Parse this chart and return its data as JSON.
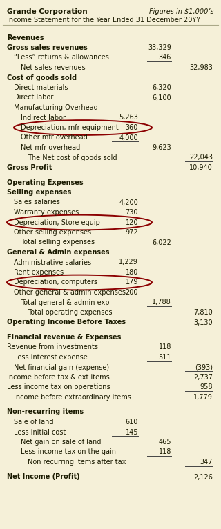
{
  "bg_color": "#f5f0d8",
  "header_line1": "Grande Corporation",
  "header_line1_italic": "Figures in $1,000’s",
  "header_line2": "Income Statement for the Year Ended 31 December 20YY",
  "rows": [
    {
      "text": "Revenues",
      "indent": 0,
      "col2": "",
      "col3": "",
      "col4": "",
      "bold": true,
      "ul2": false,
      "ul3": false,
      "ul4": false,
      "circle": false,
      "gap": true
    },
    {
      "text": "Gross sales revenues",
      "indent": 0,
      "col2": "",
      "col3": "33,329",
      "col4": "",
      "bold": true,
      "ul2": false,
      "ul3": false,
      "ul4": false,
      "circle": false,
      "gap": false
    },
    {
      "text": "“Less” returns & allowances",
      "indent": 1,
      "col2": "",
      "col3": "346",
      "col4": "",
      "bold": false,
      "ul2": false,
      "ul3": true,
      "ul4": false,
      "circle": false,
      "gap": false
    },
    {
      "text": "Net sales revenues",
      "indent": 2,
      "col2": "",
      "col3": "",
      "col4": "32,983",
      "bold": false,
      "ul2": false,
      "ul3": false,
      "ul4": false,
      "circle": false,
      "gap": false
    },
    {
      "text": "Cost of goods sold",
      "indent": 0,
      "col2": "",
      "col3": "",
      "col4": "",
      "bold": true,
      "ul2": false,
      "ul3": false,
      "ul4": false,
      "circle": false,
      "gap": false
    },
    {
      "text": "Direct materials",
      "indent": 1,
      "col2": "",
      "col3": "6,320",
      "col4": "",
      "bold": false,
      "ul2": false,
      "ul3": false,
      "ul4": false,
      "circle": false,
      "gap": false
    },
    {
      "text": "Direct labor",
      "indent": 1,
      "col2": "",
      "col3": "6,100",
      "col4": "",
      "bold": false,
      "ul2": false,
      "ul3": false,
      "ul4": false,
      "circle": false,
      "gap": false
    },
    {
      "text": "Manufacturing Overhead",
      "indent": 1,
      "col2": "",
      "col3": "",
      "col4": "",
      "bold": false,
      "ul2": false,
      "ul3": false,
      "ul4": false,
      "circle": false,
      "gap": false
    },
    {
      "text": "Indirect labor",
      "indent": 2,
      "col2": "5,263",
      "col3": "",
      "col4": "",
      "bold": false,
      "ul2": false,
      "ul3": false,
      "ul4": false,
      "circle": false,
      "gap": false
    },
    {
      "text": "Depreciation, mfr equipment",
      "indent": 2,
      "col2": "360",
      "col3": "",
      "col4": "",
      "bold": false,
      "ul2": false,
      "ul3": false,
      "ul4": false,
      "circle": true,
      "gap": false
    },
    {
      "text": "Other mfr overhead",
      "indent": 2,
      "col2": "4,000",
      "col3": "",
      "col4": "",
      "bold": false,
      "ul2": true,
      "ul3": false,
      "ul4": false,
      "circle": false,
      "gap": false
    },
    {
      "text": "Net mfr overhead",
      "indent": 2,
      "col2": "",
      "col3": "9,623",
      "col4": "",
      "bold": false,
      "ul2": false,
      "ul3": false,
      "ul4": false,
      "circle": false,
      "gap": false
    },
    {
      "text": "The Net cost of goods sold",
      "indent": 3,
      "col2": "",
      "col3": "",
      "col4": "22,043",
      "bold": false,
      "ul2": false,
      "ul3": false,
      "ul4": true,
      "circle": false,
      "gap": false
    },
    {
      "text": "Gross Profit",
      "indent": 0,
      "col2": "",
      "col3": "",
      "col4": "10,940",
      "bold": true,
      "ul2": false,
      "ul3": false,
      "ul4": false,
      "circle": false,
      "gap": false
    },
    {
      "text": "Operating Expenses",
      "indent": 0,
      "col2": "",
      "col3": "",
      "col4": "",
      "bold": true,
      "ul2": false,
      "ul3": false,
      "ul4": false,
      "circle": false,
      "gap": true
    },
    {
      "text": "Selling expenses",
      "indent": 0,
      "col2": "",
      "col3": "",
      "col4": "",
      "bold": true,
      "ul2": false,
      "ul3": false,
      "ul4": false,
      "circle": false,
      "gap": false
    },
    {
      "text": "Sales salaries",
      "indent": 1,
      "col2": "4,200",
      "col3": "",
      "col4": "",
      "bold": false,
      "ul2": false,
      "ul3": false,
      "ul4": false,
      "circle": false,
      "gap": false
    },
    {
      "text": "Warranty expenses",
      "indent": 1,
      "col2": "730",
      "col3": "",
      "col4": "",
      "bold": false,
      "ul2": false,
      "ul3": false,
      "ul4": false,
      "circle": false,
      "gap": false
    },
    {
      "text": "Depreciation, Store equip",
      "indent": 1,
      "col2": "120",
      "col3": "",
      "col4": "",
      "bold": false,
      "ul2": false,
      "ul3": false,
      "ul4": false,
      "circle": true,
      "gap": false
    },
    {
      "text": "Other selling expenses",
      "indent": 1,
      "col2": "972",
      "col3": "",
      "col4": "",
      "bold": false,
      "ul2": true,
      "ul3": false,
      "ul4": false,
      "circle": false,
      "gap": false
    },
    {
      "text": "Total selling expenses",
      "indent": 2,
      "col2": "",
      "col3": "6,022",
      "col4": "",
      "bold": false,
      "ul2": false,
      "ul3": false,
      "ul4": false,
      "circle": false,
      "gap": false
    },
    {
      "text": "General & Admin expenses",
      "indent": 0,
      "col2": "",
      "col3": "",
      "col4": "",
      "bold": true,
      "ul2": false,
      "ul3": false,
      "ul4": false,
      "circle": false,
      "gap": false
    },
    {
      "text": "Administrative salaries",
      "indent": 1,
      "col2": "1,229",
      "col3": "",
      "col4": "",
      "bold": false,
      "ul2": false,
      "ul3": false,
      "ul4": false,
      "circle": false,
      "gap": false
    },
    {
      "text": "Rent expenses",
      "indent": 1,
      "col2": "180",
      "col3": "",
      "col4": "",
      "bold": false,
      "ul2": true,
      "ul3": false,
      "ul4": false,
      "circle": false,
      "gap": false
    },
    {
      "text": "Depreciation, computers",
      "indent": 1,
      "col2": "179",
      "col3": "",
      "col4": "",
      "bold": false,
      "ul2": false,
      "ul3": false,
      "ul4": false,
      "circle": true,
      "gap": false
    },
    {
      "text": "Other general & admin expenses",
      "indent": 1,
      "col2": "200",
      "col3": "",
      "col4": "",
      "bold": false,
      "ul2": true,
      "ul3": false,
      "ul4": false,
      "circle": false,
      "gap": false
    },
    {
      "text": "Total general & admin exp",
      "indent": 2,
      "col2": "",
      "col3": "1,788",
      "col4": "",
      "bold": false,
      "ul2": false,
      "ul3": true,
      "ul4": false,
      "circle": false,
      "gap": false
    },
    {
      "text": "Total operating expenses",
      "indent": 3,
      "col2": "",
      "col3": "",
      "col4": "7,810",
      "bold": false,
      "ul2": false,
      "ul3": false,
      "ul4": true,
      "circle": false,
      "gap": false
    },
    {
      "text": "Operating Income Before Taxes",
      "indent": 0,
      "col2": "",
      "col3": "",
      "col4": "3,130",
      "bold": true,
      "ul2": false,
      "ul3": false,
      "ul4": false,
      "circle": false,
      "gap": false
    },
    {
      "text": "Financial revenue & Expenses",
      "indent": 0,
      "col2": "",
      "col3": "",
      "col4": "",
      "bold": true,
      "ul2": false,
      "ul3": false,
      "ul4": false,
      "circle": false,
      "gap": true
    },
    {
      "text": "Revenue from investments",
      "indent": 0,
      "col2": "",
      "col3": "118",
      "col4": "",
      "bold": false,
      "ul2": false,
      "ul3": false,
      "ul4": false,
      "circle": false,
      "gap": false
    },
    {
      "text": "Less interest expense",
      "indent": 1,
      "col2": "",
      "col3": "511",
      "col4": "",
      "bold": false,
      "ul2": false,
      "ul3": true,
      "ul4": false,
      "circle": false,
      "gap": false
    },
    {
      "text": "Net financial gain (expense)",
      "indent": 1,
      "col2": "",
      "col3": "",
      "col4": "(393)",
      "bold": false,
      "ul2": false,
      "ul3": false,
      "ul4": true,
      "circle": false,
      "gap": false
    },
    {
      "text": "Income before tax & ext items",
      "indent": 0,
      "col2": "",
      "col3": "",
      "col4": "2,737",
      "bold": false,
      "ul2": false,
      "ul3": false,
      "ul4": false,
      "circle": false,
      "gap": false
    },
    {
      "text": "Less income tax on operations",
      "indent": 0,
      "col2": "",
      "col3": "",
      "col4": "958",
      "bold": false,
      "ul2": false,
      "ul3": false,
      "ul4": true,
      "circle": false,
      "gap": false
    },
    {
      "text": "Income before extraordinary items",
      "indent": 1,
      "col2": "",
      "col3": "",
      "col4": "1,779",
      "bold": false,
      "ul2": false,
      "ul3": false,
      "ul4": false,
      "circle": false,
      "gap": false
    },
    {
      "text": "Non-recurring items",
      "indent": 0,
      "col2": "",
      "col3": "",
      "col4": "",
      "bold": true,
      "ul2": false,
      "ul3": false,
      "ul4": false,
      "circle": false,
      "gap": true
    },
    {
      "text": "Sale of land",
      "indent": 1,
      "col2": "610",
      "col3": "",
      "col4": "",
      "bold": false,
      "ul2": false,
      "ul3": false,
      "ul4": false,
      "circle": false,
      "gap": false
    },
    {
      "text": "Less initial cost",
      "indent": 1,
      "col2": "145",
      "col3": "",
      "col4": "",
      "bold": false,
      "ul2": true,
      "ul3": false,
      "ul4": false,
      "circle": false,
      "gap": false
    },
    {
      "text": "Net gain on sale of land",
      "indent": 2,
      "col2": "",
      "col3": "465",
      "col4": "",
      "bold": false,
      "ul2": false,
      "ul3": false,
      "ul4": false,
      "circle": false,
      "gap": false
    },
    {
      "text": "Less income tax on the gain",
      "indent": 2,
      "col2": "",
      "col3": "118",
      "col4": "",
      "bold": false,
      "ul2": false,
      "ul3": true,
      "ul4": false,
      "circle": false,
      "gap": false
    },
    {
      "text": "Non recurring items after tax",
      "indent": 3,
      "col2": "",
      "col3": "",
      "col4": "347",
      "bold": false,
      "ul2": false,
      "ul3": false,
      "ul4": true,
      "circle": false,
      "gap": false
    },
    {
      "text": "Net Income (Profit)",
      "indent": 0,
      "col2": "",
      "col3": "",
      "col4": "2,126",
      "bold": true,
      "ul2": false,
      "ul3": false,
      "ul4": false,
      "circle": false,
      "gap": true
    }
  ],
  "font_size": 7.0,
  "bg_color_hex": "#f5f0d8",
  "text_color": "#1a1a00",
  "line_color": "#444444",
  "circle_color": "#8b0000",
  "sep_color": "#aaa888"
}
